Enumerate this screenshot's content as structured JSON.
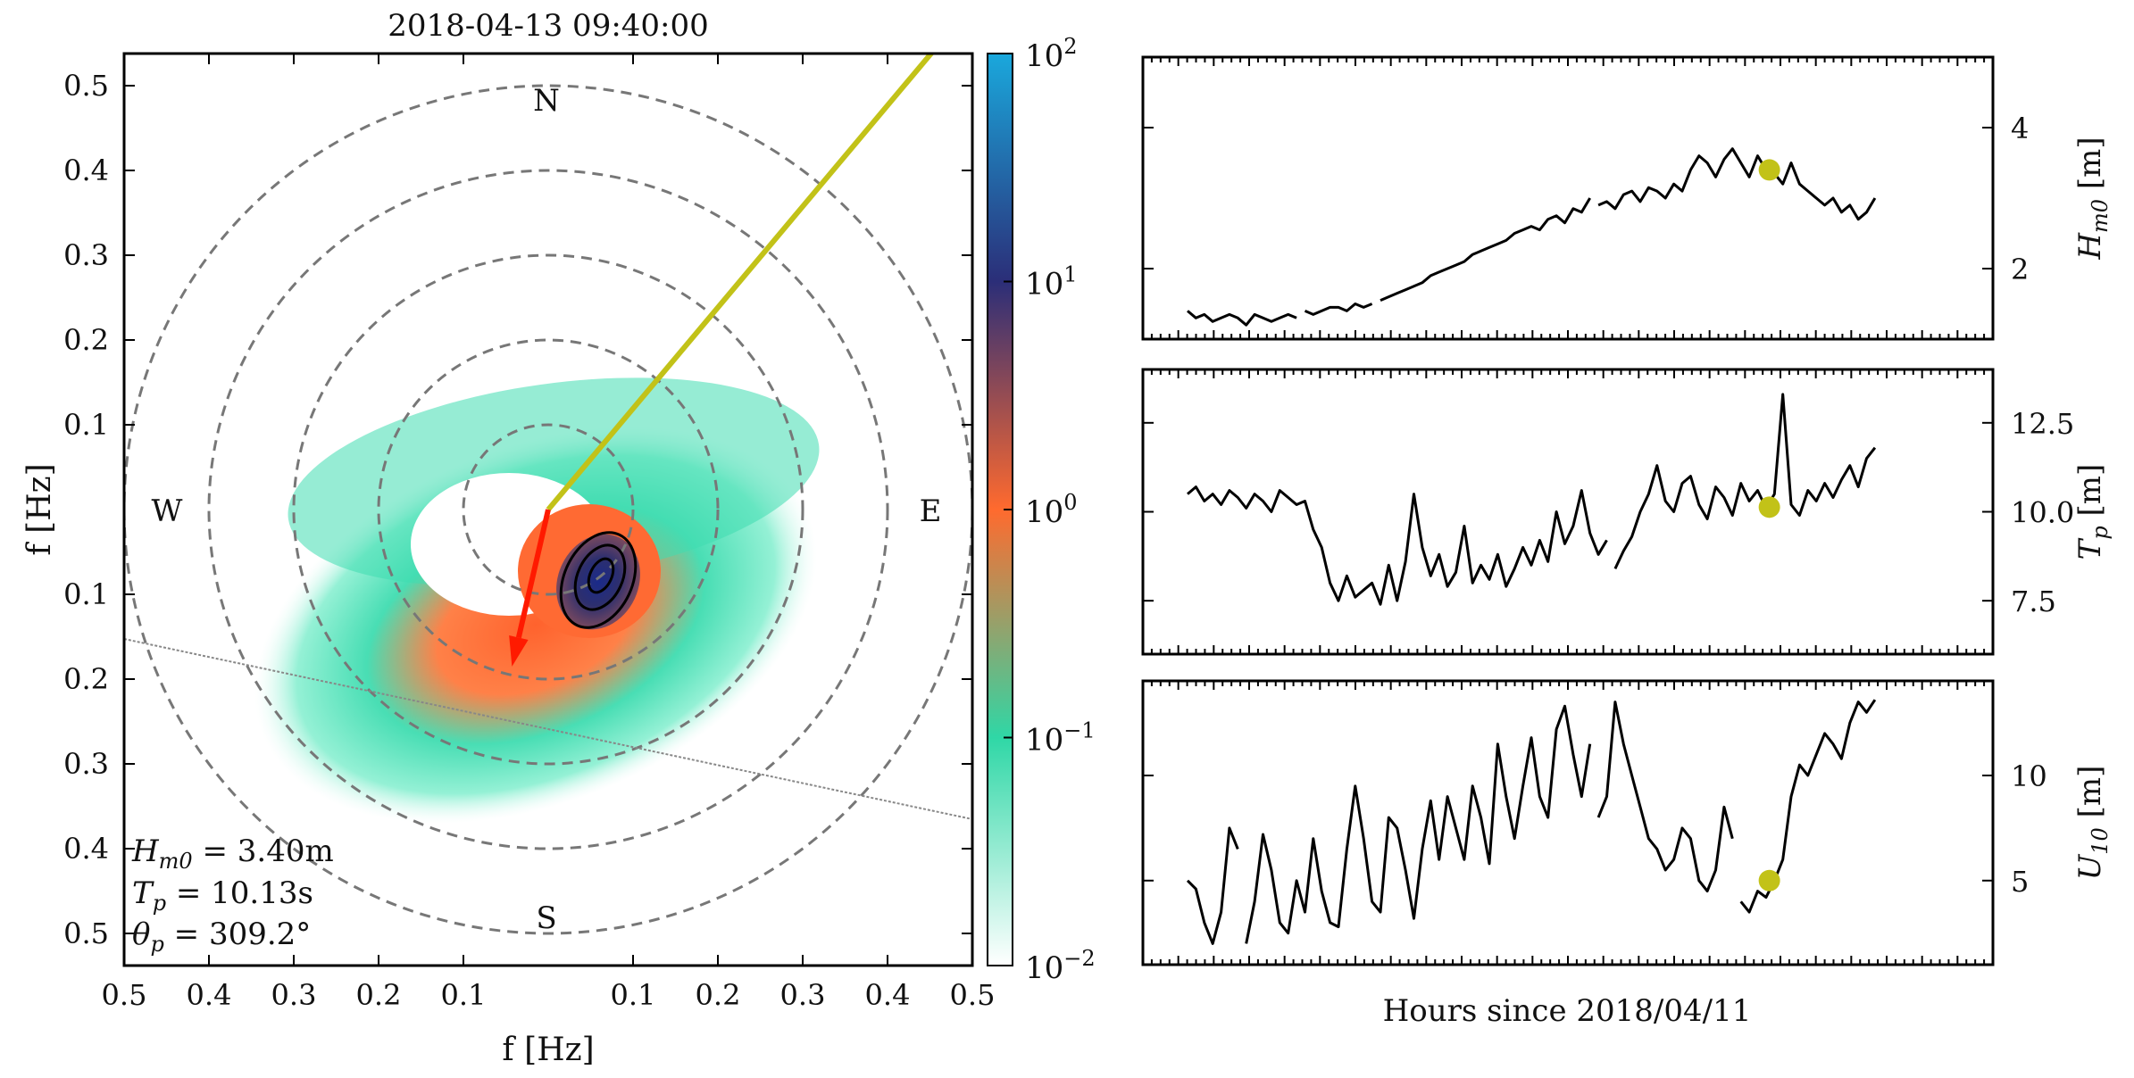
{
  "figure": {
    "title": "2018-04-13 09:40:00"
  },
  "chart_data": [
    {
      "type": "heatmap",
      "subtype": "polar directional wave spectrum",
      "title": "2018-04-13 09:40:00",
      "xlabel": "f [Hz]",
      "ylabel": "f [Hz]",
      "xticks": [
        "0.5",
        "0.4",
        "0.3",
        "0.2",
        "0.1",
        "0.1",
        "0.2",
        "0.3",
        "0.4",
        "0.5"
      ],
      "yticks": [
        "0.5",
        "0.4",
        "0.3",
        "0.2",
        "0.1",
        "0.1",
        "0.2",
        "0.3",
        "0.4",
        "0.5"
      ],
      "xlim": [
        -0.5,
        0.5
      ],
      "ylim": [
        -0.5,
        0.5
      ],
      "range_rings_hz": [
        0.1,
        0.2,
        0.3,
        0.4,
        0.5
      ],
      "compass": {
        "n": "N",
        "e": "E",
        "s": "S",
        "w": "W"
      },
      "colorbar": {
        "scale": "log",
        "range": [
          0.01,
          100
        ],
        "ticks": [
          {
            "base": "10",
            "exp": "2"
          },
          {
            "base": "10",
            "exp": "1"
          },
          {
            "base": "10",
            "exp": "0"
          },
          {
            "base": "10",
            "exp": "−1"
          },
          {
            "base": "10",
            "exp": "−2"
          }
        ],
        "colors": [
          "#ffffff",
          "#2fd7a6",
          "#ff6a2e",
          "#2b2e78",
          "#1a8fd6"
        ]
      },
      "peak_spectrum_center": {
        "direction_deg_from_north": 150,
        "frequency_hz": 0.1
      },
      "wind_arrow": {
        "direction_deg_from_north": 193,
        "length_hz": 0.19,
        "color": "#ff1a00"
      },
      "reference_line": {
        "direction_deg_from_north": 40,
        "color": "#c2c218"
      },
      "annotations": [
        {
          "label": "H",
          "sub": "m0",
          "value": " = 3.40m"
        },
        {
          "label": "T",
          "sub": "p",
          "value": " = 10.13s"
        },
        {
          "label": "θ",
          "sub": "p",
          "value": " = 309.2°"
        }
      ]
    },
    {
      "type": "line",
      "ylabel_main": "H",
      "ylabel_sub": "m0",
      "ylabel_unit": " [m]",
      "ylim": [
        1.0,
        5.0
      ],
      "yticks": [
        "2",
        "4"
      ],
      "marker": {
        "x": 69.4,
        "y": 3.4,
        "color": "#c2c218"
      },
      "series": [
        {
          "x": [
            0,
            1,
            2,
            3,
            4,
            5,
            6,
            7,
            8,
            9,
            10,
            11,
            12,
            13,
            14,
            15,
            16,
            17,
            18,
            19,
            20,
            21,
            22,
            23,
            24,
            25,
            26,
            27,
            28,
            29,
            30,
            31,
            32,
            33,
            34,
            35,
            36,
            37,
            38,
            39,
            40,
            41,
            42,
            43,
            44,
            45,
            46,
            47,
            48,
            49,
            50,
            51,
            52,
            53,
            54,
            55,
            56,
            57,
            58,
            59,
            60,
            61,
            62,
            63,
            64,
            65,
            66,
            67,
            68,
            69,
            70,
            71,
            72,
            73,
            74,
            75,
            76,
            77,
            78,
            79,
            80,
            81,
            82
          ],
          "values": [
            1.4,
            1.3,
            1.35,
            1.25,
            1.3,
            1.35,
            1.3,
            1.2,
            1.35,
            1.3,
            1.25,
            1.3,
            1.35,
            1.3,
            1.4,
            1.35,
            1.4,
            1.45,
            1.45,
            1.4,
            1.5,
            1.45,
            1.5,
            1.55,
            1.6,
            1.65,
            1.7,
            1.75,
            1.8,
            1.9,
            1.95,
            2.0,
            2.05,
            2.1,
            2.2,
            2.25,
            2.3,
            2.35,
            2.4,
            2.5,
            2.55,
            2.6,
            2.55,
            2.7,
            2.75,
            2.65,
            2.85,
            2.8,
            3.0,
            2.9,
            2.95,
            2.85,
            3.05,
            3.1,
            2.95,
            3.15,
            3.1,
            3.0,
            3.2,
            3.1,
            3.4,
            3.6,
            3.5,
            3.3,
            3.55,
            3.7,
            3.5,
            3.3,
            3.6,
            3.4,
            3.35,
            3.2,
            3.5,
            3.2,
            3.1,
            3.0,
            2.9,
            3.0,
            2.8,
            2.9,
            2.7,
            2.8,
            3.0
          ]
        }
      ],
      "gaps_after_index": [
        13,
        22,
        48
      ]
    },
    {
      "type": "line",
      "ylabel_main": "T",
      "ylabel_sub": "p",
      "ylabel_unit": " [m]",
      "ylim": [
        6.0,
        14.0
      ],
      "yticks": [
        "7.5",
        "10.0",
        "12.5"
      ],
      "marker": {
        "x": 69.4,
        "y": 10.13,
        "color": "#c2c218"
      },
      "series": [
        {
          "x": [
            0,
            1,
            2,
            3,
            4,
            5,
            6,
            7,
            8,
            9,
            10,
            11,
            12,
            13,
            14,
            15,
            16,
            17,
            18,
            19,
            20,
            21,
            22,
            23,
            24,
            25,
            26,
            27,
            28,
            29,
            30,
            31,
            32,
            33,
            34,
            35,
            36,
            37,
            38,
            39,
            40,
            41,
            42,
            43,
            44,
            45,
            46,
            47,
            48,
            49,
            50,
            51,
            52,
            53,
            54,
            55,
            56,
            57,
            58,
            59,
            60,
            61,
            62,
            63,
            64,
            65,
            66,
            67,
            68,
            69,
            70,
            71,
            72,
            73,
            74,
            75,
            76,
            77,
            78,
            79,
            80,
            81,
            82
          ],
          "values": [
            10.5,
            10.7,
            10.3,
            10.5,
            10.2,
            10.6,
            10.4,
            10.1,
            10.5,
            10.3,
            10.0,
            10.6,
            10.4,
            10.2,
            10.3,
            9.5,
            9.0,
            8.0,
            7.5,
            8.2,
            7.6,
            7.8,
            8.0,
            7.4,
            8.5,
            7.5,
            8.6,
            10.5,
            9.0,
            8.2,
            8.8,
            7.9,
            8.3,
            9.6,
            8.0,
            8.5,
            8.1,
            8.8,
            7.9,
            8.4,
            9.0,
            8.5,
            9.2,
            8.6,
            10.0,
            9.1,
            9.6,
            10.6,
            9.4,
            8.8,
            9.2,
            8.4,
            8.9,
            9.3,
            10.0,
            10.5,
            11.3,
            10.3,
            10.0,
            10.8,
            11.0,
            10.2,
            9.8,
            10.7,
            10.4,
            9.9,
            10.8,
            10.3,
            10.6,
            10.1,
            10.5,
            13.3,
            10.2,
            9.9,
            10.6,
            10.3,
            10.8,
            10.4,
            10.9,
            11.3,
            10.7,
            11.5,
            11.8
          ]
        }
      ],
      "gaps_after_index": [
        50
      ]
    },
    {
      "type": "line",
      "ylabel_main": "U",
      "ylabel_sub": "10",
      "ylabel_unit": " [m]",
      "ylim": [
        1.0,
        14.5
      ],
      "yticks": [
        "5",
        "10"
      ],
      "xlabel": "Hours since 2018/04/11",
      "marker": {
        "x": 69.4,
        "y": 5.0,
        "color": "#c2c218"
      },
      "series": [
        {
          "x": [
            0,
            1,
            2,
            3,
            4,
            5,
            6,
            7,
            8,
            9,
            10,
            11,
            12,
            13,
            14,
            15,
            16,
            17,
            18,
            19,
            20,
            21,
            22,
            23,
            24,
            25,
            26,
            27,
            28,
            29,
            30,
            31,
            32,
            33,
            34,
            35,
            36,
            37,
            38,
            39,
            40,
            41,
            42,
            43,
            44,
            45,
            46,
            47,
            48,
            49,
            50,
            51,
            52,
            53,
            54,
            55,
            56,
            57,
            58,
            59,
            60,
            61,
            62,
            63,
            64,
            65,
            66,
            67,
            68,
            69,
            70,
            71,
            72,
            73,
            74,
            75,
            76,
            77,
            78,
            79,
            80,
            81,
            82
          ],
          "values": [
            5.0,
            4.6,
            3.0,
            2.0,
            3.5,
            7.5,
            6.5,
            2.0,
            4.0,
            7.2,
            5.5,
            3.0,
            2.5,
            5.0,
            3.5,
            7.0,
            4.5,
            3.0,
            2.8,
            6.5,
            9.5,
            7.0,
            4.0,
            3.5,
            8.0,
            7.5,
            5.5,
            3.2,
            6.5,
            8.8,
            6.0,
            9.0,
            7.5,
            6.0,
            9.5,
            8.0,
            5.8,
            11.5,
            9.0,
            7.0,
            9.5,
            11.8,
            9.0,
            8.0,
            12.2,
            13.3,
            11.0,
            9.0,
            11.5,
            8.0,
            9.0,
            13.5,
            11.5,
            10.0,
            8.5,
            7.0,
            6.5,
            5.5,
            6.0,
            7.5,
            7.0,
            5.0,
            4.5,
            5.5,
            8.5,
            7.0,
            4.0,
            3.5,
            4.5,
            4.2,
            5.0,
            6.0,
            9.0,
            10.5,
            10.0,
            11.0,
            12.0,
            11.5,
            10.8,
            12.5,
            13.5,
            13.0,
            13.6
          ]
        }
      ],
      "gaps_after_index": [
        6,
        48,
        65
      ]
    }
  ]
}
